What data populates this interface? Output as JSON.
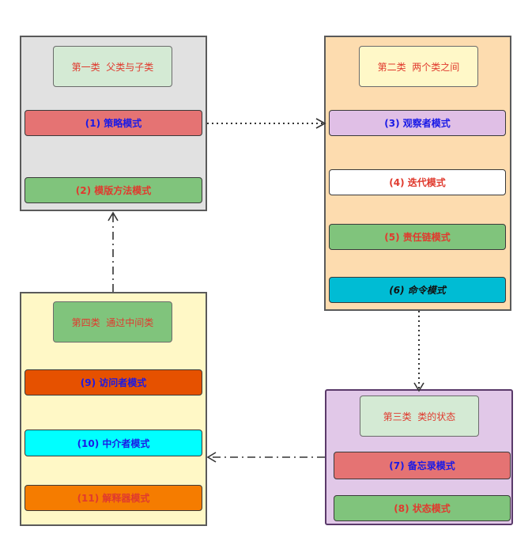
{
  "groups": {
    "g1": {
      "title": "第一类  父类与子类",
      "items": [
        "(1) 策略模式",
        "(2) 模版方法模式"
      ]
    },
    "g2": {
      "title": "第二类  两个类之间",
      "items": [
        "(3) 观察者模式",
        "(4)  迭代模式",
        "(5) 责任链模式",
        "(6) 命令模式"
      ]
    },
    "g3": {
      "title": "第三类  类的状态",
      "items": [
        "(7) 备忘录模式",
        "(8) 状态模式"
      ]
    },
    "g4": {
      "title": "第四类  通过中间类",
      "items": [
        "(9) 访问者模式",
        "(10) 中介者模式",
        "(11) 解释器模式"
      ]
    }
  },
  "colors": {
    "g1_bg": "#e1e1e1",
    "g2_bg": "#fddcaf",
    "g3_bg": "#e1c8e8",
    "g4_bg": "#fff8c6",
    "title_green_light": "#d4ead4",
    "title_yellow_light": "#fff8c8",
    "title_green": "#80c47c",
    "red_item": "#e57373",
    "green_item": "#80c47c",
    "lavender_item": "#e0bfe6",
    "white_item": "#ffffff",
    "cyan_item": "#00bcd4",
    "orange_dark_item": "#e65100",
    "aqua_item": "#00ffff",
    "orange_item": "#f57c00",
    "text_red": "#e03a2e",
    "text_blue": "#1a1ae6"
  }
}
